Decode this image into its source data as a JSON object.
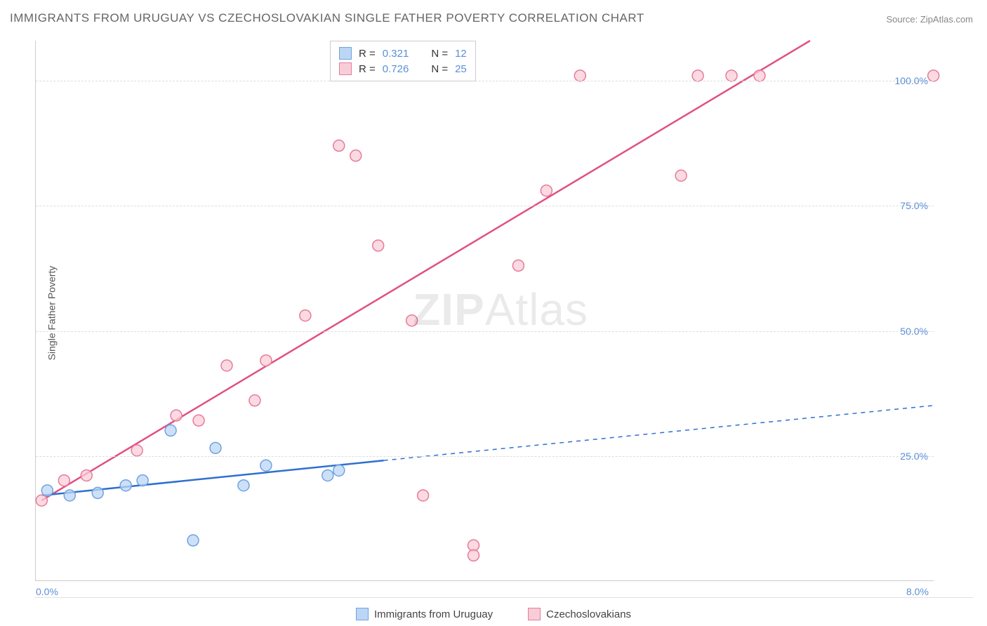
{
  "title": "IMMIGRANTS FROM URUGUAY VS CZECHOSLOVAKIAN SINGLE FATHER POVERTY CORRELATION CHART",
  "source": "Source: ZipAtlas.com",
  "watermark": {
    "zip": "ZIP",
    "atlas": "Atlas"
  },
  "chart": {
    "type": "scatter",
    "ylabel": "Single Father Poverty",
    "xlim": [
      0,
      8
    ],
    "ylim": [
      0,
      108
    ],
    "xticks": [
      {
        "value": 0.0,
        "label": "0.0%"
      },
      {
        "value": 8.0,
        "label": "8.0%"
      }
    ],
    "yticks": [
      {
        "value": 25,
        "label": "25.0%"
      },
      {
        "value": 50,
        "label": "50.0%"
      },
      {
        "value": 75,
        "label": "75.0%"
      },
      {
        "value": 100,
        "label": "100.0%"
      }
    ],
    "grid_color": "#dddddd",
    "background_color": "#ffffff",
    "series": [
      {
        "name": "Immigrants from Uruguay",
        "marker_fill": "#bcd6f5",
        "marker_stroke": "#6fa3e0",
        "marker_radius": 8,
        "line_color": "#2f6fd0",
        "line_width": 2.5,
        "r": 0.321,
        "n": 12,
        "trend_solid": {
          "x1": 0.05,
          "y1": 17,
          "x2": 3.1,
          "y2": 24
        },
        "trend_dashed": {
          "x1": 3.1,
          "y1": 24,
          "x2": 8.0,
          "y2": 35
        },
        "points": [
          {
            "x": 0.1,
            "y": 18
          },
          {
            "x": 0.3,
            "y": 17
          },
          {
            "x": 0.55,
            "y": 17.5
          },
          {
            "x": 0.8,
            "y": 19
          },
          {
            "x": 0.95,
            "y": 20
          },
          {
            "x": 1.2,
            "y": 30
          },
          {
            "x": 1.4,
            "y": 8
          },
          {
            "x": 1.6,
            "y": 26.5
          },
          {
            "x": 1.85,
            "y": 19
          },
          {
            "x": 2.05,
            "y": 23
          },
          {
            "x": 2.6,
            "y": 21
          },
          {
            "x": 2.7,
            "y": 22
          }
        ]
      },
      {
        "name": "Czechoslovakians",
        "marker_fill": "#f9cdd8",
        "marker_stroke": "#e77a9a",
        "marker_radius": 8,
        "line_color": "#e05080",
        "line_width": 2.5,
        "r": 0.726,
        "n": 25,
        "trend_solid": {
          "x1": 0.05,
          "y1": 16,
          "x2": 6.9,
          "y2": 108
        },
        "points": [
          {
            "x": 0.05,
            "y": 16
          },
          {
            "x": 0.25,
            "y": 20
          },
          {
            "x": 0.45,
            "y": 21
          },
          {
            "x": 0.9,
            "y": 26
          },
          {
            "x": 1.25,
            "y": 33
          },
          {
            "x": 1.45,
            "y": 32
          },
          {
            "x": 1.7,
            "y": 43
          },
          {
            "x": 1.95,
            "y": 36
          },
          {
            "x": 2.05,
            "y": 44
          },
          {
            "x": 2.4,
            "y": 53
          },
          {
            "x": 2.7,
            "y": 87
          },
          {
            "x": 2.85,
            "y": 85
          },
          {
            "x": 3.05,
            "y": 67
          },
          {
            "x": 3.35,
            "y": 52
          },
          {
            "x": 3.45,
            "y": 17
          },
          {
            "x": 3.9,
            "y": 7
          },
          {
            "x": 3.9,
            "y": 5
          },
          {
            "x": 4.3,
            "y": 63
          },
          {
            "x": 4.55,
            "y": 78
          },
          {
            "x": 4.85,
            "y": 101
          },
          {
            "x": 5.75,
            "y": 81
          },
          {
            "x": 5.9,
            "y": 101
          },
          {
            "x": 6.2,
            "y": 101
          },
          {
            "x": 6.45,
            "y": 101
          },
          {
            "x": 8.0,
            "y": 101
          }
        ]
      }
    ]
  },
  "legend_top": [
    {
      "swatch_fill": "#bcd6f5",
      "swatch_stroke": "#6fa3e0",
      "r_label": "R =",
      "r_value": "0.321",
      "n_label": "N =",
      "n_value": "12"
    },
    {
      "swatch_fill": "#f9cdd8",
      "swatch_stroke": "#e77a9a",
      "r_label": "R =",
      "r_value": "0.726",
      "n_label": "N =",
      "n_value": "25"
    }
  ],
  "legend_bottom": [
    {
      "swatch_fill": "#bcd6f5",
      "swatch_stroke": "#6fa3e0",
      "label": "Immigrants from Uruguay"
    },
    {
      "swatch_fill": "#f9cdd8",
      "swatch_stroke": "#e77a9a",
      "label": "Czechoslovakians"
    }
  ]
}
